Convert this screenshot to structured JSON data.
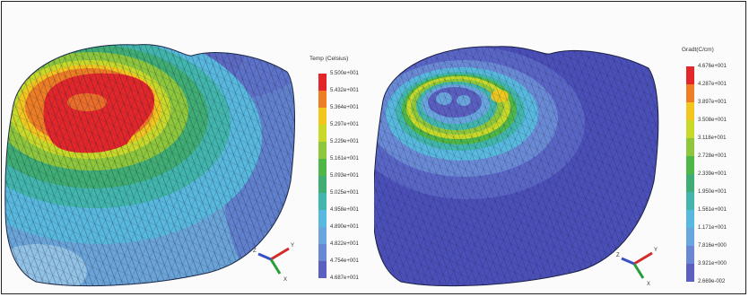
{
  "panels": [
    {
      "legend_title": "Temp (Celsius)",
      "legend_labels": [
        "5.500e+001",
        "5.432e+001",
        "5.364e+001",
        "5.297e+001",
        "5.229e+001",
        "5.161e+001",
        "5.093e+001",
        "5.025e+001",
        "4.958e+001",
        "4.890e+001",
        "4.822e+001",
        "4.754e+001",
        "4.687e+001"
      ],
      "colors": [
        "#e3262a",
        "#ee7d24",
        "#f3c51f",
        "#c8d92a",
        "#8ec73c",
        "#4fb747",
        "#3fad74",
        "#42b6ad",
        "#58b8de",
        "#6aa6de",
        "#6a87d4",
        "#5a5fc0"
      ]
    },
    {
      "legend_title": "Gradt(C/cm)",
      "legend_labels": [
        "4.676e+001",
        "4.287e+001",
        "3.897e+001",
        "3.508e+001",
        "3.118e+001",
        "2.728e+001",
        "2.339e+001",
        "1.950e+001",
        "1.561e+001",
        "1.171e+001",
        "7.816e+000",
        "3.921e+000",
        "2.669e-002"
      ],
      "colors": [
        "#e3262a",
        "#ee7d24",
        "#f3c51f",
        "#c8d92a",
        "#8ec73c",
        "#4fb747",
        "#3fad74",
        "#42b6ad",
        "#58b8de",
        "#6aa6de",
        "#6a87d4",
        "#5a5fc0"
      ]
    }
  ],
  "triad_labels": [
    "Y",
    "X",
    "Z"
  ],
  "triad_colors": {
    "x": "#d62a2a",
    "y": "#2a9c3a",
    "z": "#3a4fc0"
  }
}
